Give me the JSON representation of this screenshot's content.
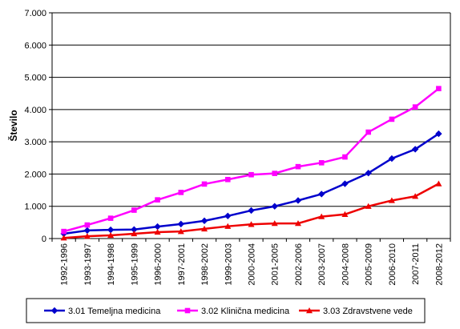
{
  "chart_data": {
    "type": "line",
    "title": "",
    "xlabel": "",
    "ylabel": "Število",
    "ylim": [
      0,
      7000
    ],
    "yticks": [
      0,
      1000,
      2000,
      3000,
      4000,
      5000,
      6000,
      7000
    ],
    "ytick_labels": [
      "0",
      "1.000",
      "2.000",
      "3.000",
      "4.000",
      "5.000",
      "6.000",
      "7.000"
    ],
    "grid": true,
    "legend_position": "bottom",
    "categories": [
      "1992-1996",
      "1993-1997",
      "1994-1998",
      "1995-1999",
      "1996-2000",
      "1997-2001",
      "1998-2002",
      "1999-2003",
      "2000-2004",
      "2001-2005",
      "2002-2006",
      "2003-2007",
      "2004-2008",
      "2005-2009",
      "2006-2010",
      "2007-2011",
      "2008-2012"
    ],
    "series": [
      {
        "name": "3.01 Temeljna medicina",
        "color": "#0000cc",
        "marker": "diamond",
        "values": [
          150,
          250,
          270,
          280,
          370,
          450,
          550,
          700,
          870,
          1000,
          1180,
          1380,
          1700,
          2030,
          2480,
          2770,
          3250
        ]
      },
      {
        "name": "3.02 Klinična medicina",
        "color": "#ff00ff",
        "marker": "square",
        "values": [
          220,
          420,
          630,
          880,
          1200,
          1430,
          1690,
          1830,
          1980,
          2020,
          2230,
          2350,
          2530,
          3300,
          3700,
          4080,
          4650
        ]
      },
      {
        "name": "3.03 Zdravstvene vede",
        "color": "#ee0000",
        "marker": "triangle",
        "values": [
          20,
          70,
          100,
          150,
          200,
          220,
          300,
          380,
          440,
          470,
          470,
          680,
          750,
          1000,
          1180,
          1310,
          1700
        ]
      }
    ]
  }
}
